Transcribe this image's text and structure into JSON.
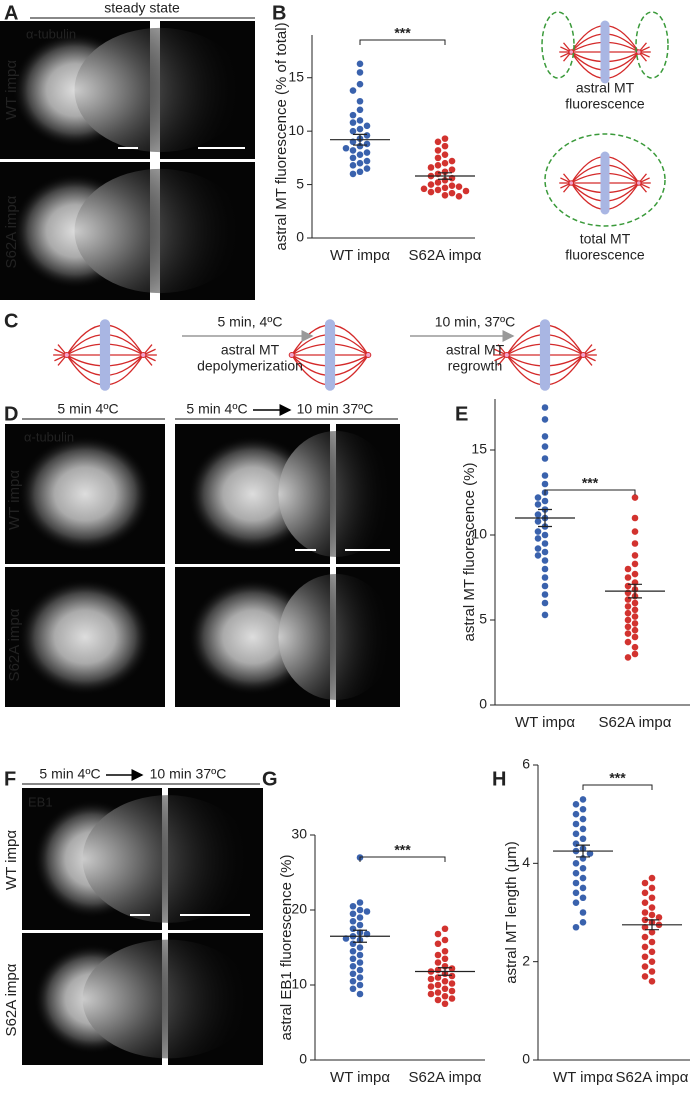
{
  "figure": {
    "panels": [
      "A",
      "B",
      "C",
      "D",
      "E",
      "F",
      "G",
      "H"
    ],
    "A": {
      "title": "steady state",
      "stain": "α-tubulin",
      "rows": [
        "WT impα",
        "S62A impα"
      ]
    },
    "B_diagram": {
      "astral_label": [
        "astral MT",
        "fluorescence"
      ],
      "total_label": [
        "total MT",
        "fluorescence"
      ]
    },
    "C": {
      "steps": [
        [
          "5 min, 4ºC",
          "astral MT",
          "depolymerization"
        ],
        [
          "10 min, 37ºC",
          "astral MT",
          "regrowth"
        ]
      ]
    },
    "D": {
      "headers": [
        "5 min 4ºC",
        "5 min 4ºC",
        "10 min 37ºC"
      ],
      "stain": "α-tubulin",
      "rows": [
        "WT impα",
        "S62A impα"
      ]
    },
    "F": {
      "headers": [
        "5 min 4ºC",
        "10 min 37ºC"
      ],
      "stain": "EB1",
      "rows": [
        "WT impα",
        "S62A impα"
      ]
    }
  },
  "chart_data": [
    {
      "type": "strip",
      "ylabel": "astral MT fluorescence (% of total)",
      "categories": [
        "WT impα",
        "S62A impα"
      ],
      "significance": "***",
      "ylim": [
        0,
        19
      ],
      "yticks": [
        0,
        5,
        10,
        15
      ],
      "series": [
        {
          "color": "#3a62ad",
          "mean": 9.2,
          "sem": 0.5,
          "values": [
            16.3,
            15.5,
            14.4,
            13.8,
            12.8,
            12.0,
            11.5,
            11.0,
            10.8,
            10.5,
            10.2,
            10.0,
            9.6,
            9.3,
            9.0,
            8.8,
            8.6,
            8.4,
            8.2,
            8.0,
            7.8,
            7.5,
            7.2,
            7.0,
            6.8,
            6.5,
            6.2,
            6.0
          ]
        },
        {
          "color": "#d2332f",
          "mean": 5.8,
          "sem": 0.3,
          "values": [
            9.3,
            9.0,
            8.6,
            8.2,
            7.8,
            7.5,
            7.2,
            7.0,
            6.8,
            6.6,
            6.4,
            6.2,
            6.0,
            5.8,
            5.6,
            5.4,
            5.2,
            5.0,
            4.9,
            4.8,
            4.7,
            4.6,
            4.5,
            4.4,
            4.3,
            4.2,
            4.0,
            3.9
          ]
        }
      ]
    },
    {
      "type": "strip",
      "ylabel": "astral MT fluorescence (%)",
      "categories": [
        "WT impα",
        "S62A impα"
      ],
      "significance": "***",
      "ylim": [
        0,
        18
      ],
      "yticks": [
        0,
        5,
        10,
        15
      ],
      "series": [
        {
          "color": "#3a62ad",
          "mean": 11.0,
          "sem": 0.5,
          "values": [
            17.5,
            16.8,
            15.8,
            15.2,
            14.5,
            13.5,
            13.0,
            12.5,
            12.2,
            12.0,
            11.8,
            11.5,
            11.2,
            11.0,
            10.8,
            10.5,
            10.2,
            10.0,
            9.8,
            9.5,
            9.2,
            9.0,
            8.8,
            8.5,
            8.0,
            7.5,
            7.0,
            6.5,
            6.0,
            5.3
          ]
        },
        {
          "color": "#d2332f",
          "mean": 6.7,
          "sem": 0.4,
          "values": [
            12.2,
            11.0,
            10.2,
            9.5,
            8.8,
            8.3,
            8.0,
            7.7,
            7.5,
            7.2,
            7.0,
            6.8,
            6.6,
            6.4,
            6.2,
            6.0,
            5.8,
            5.6,
            5.4,
            5.2,
            5.0,
            4.8,
            4.6,
            4.4,
            4.2,
            4.0,
            3.7,
            3.4,
            3.0,
            2.8
          ]
        }
      ]
    },
    {
      "type": "strip",
      "ylabel": "astral EB1 fluorescence (%)",
      "categories": [
        "WT impα",
        "S62A impα"
      ],
      "significance": "***",
      "ylim": [
        0,
        30
      ],
      "yticks": [
        0,
        10,
        20,
        30
      ],
      "series": [
        {
          "color": "#3a62ad",
          "mean": 16.5,
          "sem": 0.8,
          "values": [
            27.0,
            21.0,
            20.5,
            20.0,
            19.8,
            19.5,
            19.0,
            18.5,
            18.0,
            17.5,
            17.0,
            16.8,
            16.5,
            16.2,
            16.0,
            15.5,
            15.0,
            14.5,
            14.0,
            13.5,
            13.0,
            12.5,
            12.0,
            11.5,
            11.0,
            10.5,
            10.0,
            9.5,
            8.8
          ]
        },
        {
          "color": "#d2332f",
          "mean": 11.8,
          "sem": 0.5,
          "values": [
            17.5,
            16.8,
            16.0,
            15.5,
            14.5,
            14.0,
            13.5,
            13.0,
            12.5,
            12.2,
            12.0,
            11.8,
            11.5,
            11.2,
            11.0,
            10.8,
            10.5,
            10.2,
            10.0,
            9.8,
            9.5,
            9.2,
            9.0,
            8.8,
            8.5,
            8.2,
            8.0,
            7.5
          ]
        }
      ]
    },
    {
      "type": "strip",
      "ylabel": "astral MT length (μm)",
      "categories": [
        "WT impα",
        "S62A impα"
      ],
      "significance": "***",
      "ylim": [
        0,
        6
      ],
      "yticks": [
        0,
        2,
        4,
        6
      ],
      "series": [
        {
          "color": "#3a62ad",
          "mean": 4.25,
          "sem": 0.12,
          "values": [
            5.3,
            5.2,
            5.1,
            5.0,
            4.9,
            4.8,
            4.7,
            4.6,
            4.5,
            4.4,
            4.3,
            4.25,
            4.2,
            4.1,
            4.0,
            3.9,
            3.8,
            3.7,
            3.6,
            3.5,
            3.4,
            3.3,
            3.2,
            3.0,
            2.8,
            2.7
          ]
        },
        {
          "color": "#d2332f",
          "mean": 2.75,
          "sem": 0.1,
          "values": [
            3.7,
            3.6,
            3.5,
            3.4,
            3.3,
            3.2,
            3.1,
            3.0,
            2.95,
            2.9,
            2.85,
            2.8,
            2.75,
            2.7,
            2.6,
            2.5,
            2.4,
            2.3,
            2.2,
            2.1,
            2.0,
            1.9,
            1.8,
            1.7,
            1.6
          ]
        }
      ]
    }
  ]
}
